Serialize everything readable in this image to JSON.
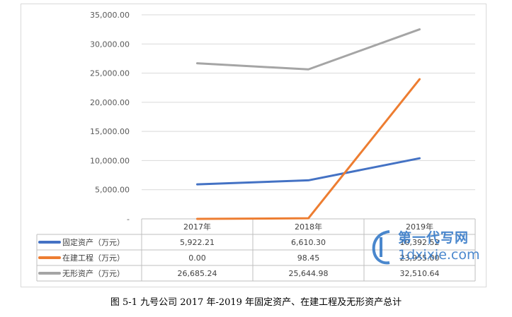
{
  "chart_data": {
    "type": "line",
    "categories": [
      "2017年",
      "2018年",
      "2019年"
    ],
    "ylim": [
      0,
      35000
    ],
    "yticks": [
      "-",
      "5,000.00",
      "10,000.00",
      "15,000.00",
      "20,000.00",
      "25,000.00",
      "30,000.00",
      "35,000.00"
    ],
    "grid": true,
    "legend": "data-table",
    "series": [
      {
        "name": "固定资产（万元）",
        "color": "#4472c4",
        "values": [
          5922.21,
          6610.3,
          10392.52
        ],
        "labels": [
          "5,922.21",
          "6,610.30",
          "10,392.52"
        ]
      },
      {
        "name": "在建工程（万元）",
        "color": "#ed7d31",
        "values": [
          0.0,
          98.45,
          23955.0
        ],
        "labels": [
          "0.00",
          "98.45",
          "23,955.00"
        ]
      },
      {
        "name": "无形资产（万元）",
        "color": "#a5a5a5",
        "values": [
          26685.24,
          25644.98,
          32510.64
        ],
        "labels": [
          "26,685.24",
          "25,644.98",
          "32,510.64"
        ]
      }
    ]
  },
  "caption": "图 5-1  九号公司 2017 年-2019 年固定资产、在建工程及无形资产总计",
  "watermark": {
    "line1": "第一代写网",
    "line2": "1dxixie.com"
  }
}
